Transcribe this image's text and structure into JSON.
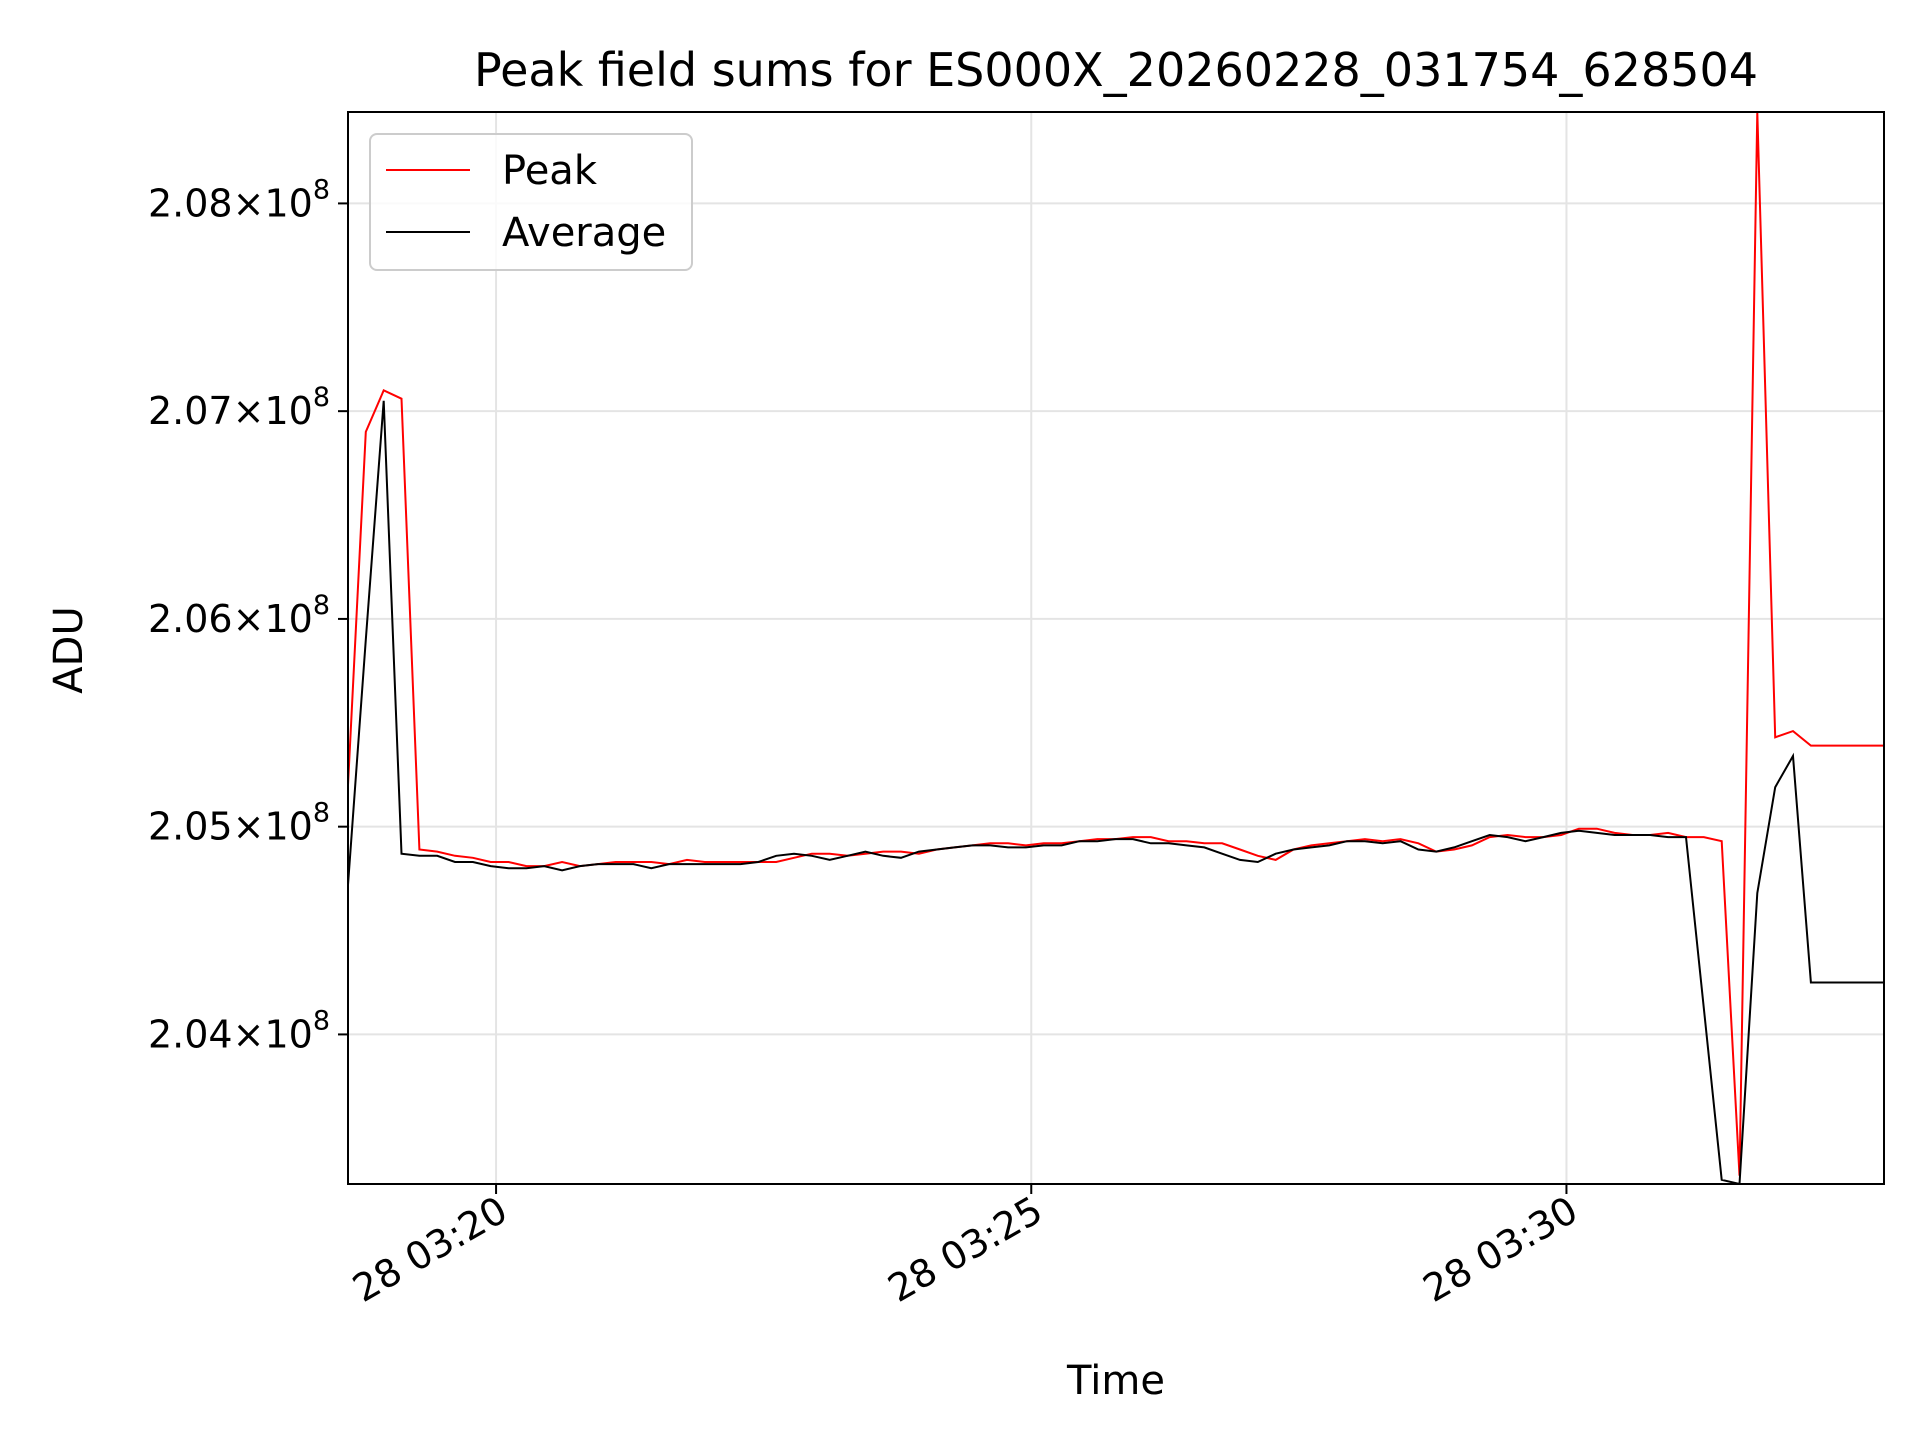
{
  "chart_data": {
    "type": "line",
    "title": "Peak field sums for ES000X_20260228_031754_628504",
    "xlabel": "Time",
    "ylabel": "ADU",
    "x_start": "2026-02-28 03:18:37",
    "x_end": "2026-02-28 03:32:58",
    "xlim": [
      "2026-02-28 03:18:37",
      "2026-02-28 03:32:58"
    ],
    "ylim": [
      203280000,
      208440000
    ],
    "x_ticks": [
      {
        "value": "2026-02-28 03:20:00",
        "label": "28 03:20"
      },
      {
        "value": "2026-02-28 03:25:00",
        "label": "28 03:25"
      },
      {
        "value": "2026-02-28 03:30:00",
        "label": "28 03:30"
      }
    ],
    "y_ticks": [
      {
        "value": 204000000,
        "mantissa": "2.04",
        "exponent": "8"
      },
      {
        "value": 205000000,
        "mantissa": "2.05",
        "exponent": "8"
      },
      {
        "value": 206000000,
        "mantissa": "2.06",
        "exponent": "8"
      },
      {
        "value": 207000000,
        "mantissa": "2.07",
        "exponent": "8"
      },
      {
        "value": 208000000,
        "mantissa": "2.08",
        "exponent": "8"
      }
    ],
    "tick_times_sep": "×10",
    "grid": true,
    "legend_position": "upper-left",
    "series": [
      {
        "name": "Peak",
        "color": "#ff0000",
        "points": [
          [
            "2026-02-28 03:18:37",
            205200000
          ],
          [
            "2026-02-28 03:18:47",
            206900000
          ],
          [
            "2026-02-28 03:18:57",
            207100000
          ],
          [
            "2026-02-28 03:19:07",
            207060000
          ],
          [
            "2026-02-28 03:19:17",
            204890000
          ],
          [
            "2026-02-28 03:19:27",
            204880000
          ],
          [
            "2026-02-28 03:19:37",
            204860000
          ],
          [
            "2026-02-28 03:19:47",
            204850000
          ],
          [
            "2026-02-28 03:19:57",
            204830000
          ],
          [
            "2026-02-28 03:20:07",
            204830000
          ],
          [
            "2026-02-28 03:20:17",
            204810000
          ],
          [
            "2026-02-28 03:20:27",
            204810000
          ],
          [
            "2026-02-28 03:20:37",
            204830000
          ],
          [
            "2026-02-28 03:20:47",
            204810000
          ],
          [
            "2026-02-28 03:20:57",
            204820000
          ],
          [
            "2026-02-28 03:21:07",
            204830000
          ],
          [
            "2026-02-28 03:21:17",
            204830000
          ],
          [
            "2026-02-28 03:21:27",
            204830000
          ],
          [
            "2026-02-28 03:21:37",
            204820000
          ],
          [
            "2026-02-28 03:21:47",
            204840000
          ],
          [
            "2026-02-28 03:21:57",
            204830000
          ],
          [
            "2026-02-28 03:22:07",
            204830000
          ],
          [
            "2026-02-28 03:22:17",
            204830000
          ],
          [
            "2026-02-28 03:22:27",
            204830000
          ],
          [
            "2026-02-28 03:22:37",
            204830000
          ],
          [
            "2026-02-28 03:22:47",
            204850000
          ],
          [
            "2026-02-28 03:22:57",
            204870000
          ],
          [
            "2026-02-28 03:23:07",
            204870000
          ],
          [
            "2026-02-28 03:23:17",
            204860000
          ],
          [
            "2026-02-28 03:23:27",
            204870000
          ],
          [
            "2026-02-28 03:23:37",
            204880000
          ],
          [
            "2026-02-28 03:23:47",
            204880000
          ],
          [
            "2026-02-28 03:23:57",
            204870000
          ],
          [
            "2026-02-28 03:24:07",
            204890000
          ],
          [
            "2026-02-28 03:24:17",
            204900000
          ],
          [
            "2026-02-28 03:24:27",
            204910000
          ],
          [
            "2026-02-28 03:24:37",
            204920000
          ],
          [
            "2026-02-28 03:24:47",
            204920000
          ],
          [
            "2026-02-28 03:24:57",
            204910000
          ],
          [
            "2026-02-28 03:25:07",
            204920000
          ],
          [
            "2026-02-28 03:25:17",
            204920000
          ],
          [
            "2026-02-28 03:25:27",
            204930000
          ],
          [
            "2026-02-28 03:25:37",
            204940000
          ],
          [
            "2026-02-28 03:25:47",
            204940000
          ],
          [
            "2026-02-28 03:25:57",
            204950000
          ],
          [
            "2026-02-28 03:26:07",
            204950000
          ],
          [
            "2026-02-28 03:26:17",
            204930000
          ],
          [
            "2026-02-28 03:26:27",
            204930000
          ],
          [
            "2026-02-28 03:26:37",
            204920000
          ],
          [
            "2026-02-28 03:26:47",
            204920000
          ],
          [
            "2026-02-28 03:26:57",
            204890000
          ],
          [
            "2026-02-28 03:27:07",
            204860000
          ],
          [
            "2026-02-28 03:27:17",
            204840000
          ],
          [
            "2026-02-28 03:27:27",
            204890000
          ],
          [
            "2026-02-28 03:27:37",
            204910000
          ],
          [
            "2026-02-28 03:27:47",
            204920000
          ],
          [
            "2026-02-28 03:27:57",
            204930000
          ],
          [
            "2026-02-28 03:28:07",
            204940000
          ],
          [
            "2026-02-28 03:28:17",
            204930000
          ],
          [
            "2026-02-28 03:28:27",
            204940000
          ],
          [
            "2026-02-28 03:28:37",
            204920000
          ],
          [
            "2026-02-28 03:28:47",
            204880000
          ],
          [
            "2026-02-28 03:28:57",
            204890000
          ],
          [
            "2026-02-28 03:29:07",
            204910000
          ],
          [
            "2026-02-28 03:29:17",
            204950000
          ],
          [
            "2026-02-28 03:29:27",
            204960000
          ],
          [
            "2026-02-28 03:29:37",
            204950000
          ],
          [
            "2026-02-28 03:29:47",
            204950000
          ],
          [
            "2026-02-28 03:29:57",
            204960000
          ],
          [
            "2026-02-28 03:30:07",
            204990000
          ],
          [
            "2026-02-28 03:30:17",
            204990000
          ],
          [
            "2026-02-28 03:30:27",
            204970000
          ],
          [
            "2026-02-28 03:30:37",
            204960000
          ],
          [
            "2026-02-28 03:30:47",
            204960000
          ],
          [
            "2026-02-28 03:30:57",
            204970000
          ],
          [
            "2026-02-28 03:31:07",
            204950000
          ],
          [
            "2026-02-28 03:31:17",
            204950000
          ],
          [
            "2026-02-28 03:31:27",
            204930000
          ],
          [
            "2026-02-28 03:31:37",
            203320000
          ],
          [
            "2026-02-28 03:31:47",
            208440000
          ],
          [
            "2026-02-28 03:31:57",
            205430000
          ],
          [
            "2026-02-28 03:32:07",
            205460000
          ],
          [
            "2026-02-28 03:32:17",
            205390000
          ],
          [
            "2026-02-28 03:32:27",
            205390000
          ],
          [
            "2026-02-28 03:32:58",
            205390000
          ]
        ]
      },
      {
        "name": "Average",
        "color": "#000000",
        "points": [
          [
            "2026-02-28 03:18:37",
            204720000
          ],
          [
            "2026-02-28 03:18:47",
            205900000
          ],
          [
            "2026-02-28 03:18:57",
            207050000
          ],
          [
            "2026-02-28 03:19:07",
            204870000
          ],
          [
            "2026-02-28 03:19:17",
            204860000
          ],
          [
            "2026-02-28 03:19:27",
            204860000
          ],
          [
            "2026-02-28 03:19:37",
            204830000
          ],
          [
            "2026-02-28 03:19:47",
            204830000
          ],
          [
            "2026-02-28 03:19:57",
            204810000
          ],
          [
            "2026-02-28 03:20:07",
            204800000
          ],
          [
            "2026-02-28 03:20:17",
            204800000
          ],
          [
            "2026-02-28 03:20:27",
            204810000
          ],
          [
            "2026-02-28 03:20:37",
            204790000
          ],
          [
            "2026-02-28 03:20:47",
            204810000
          ],
          [
            "2026-02-28 03:20:57",
            204820000
          ],
          [
            "2026-02-28 03:21:07",
            204820000
          ],
          [
            "2026-02-28 03:21:17",
            204820000
          ],
          [
            "2026-02-28 03:21:27",
            204800000
          ],
          [
            "2026-02-28 03:21:37",
            204820000
          ],
          [
            "2026-02-28 03:21:47",
            204820000
          ],
          [
            "2026-02-28 03:21:57",
            204820000
          ],
          [
            "2026-02-28 03:22:07",
            204820000
          ],
          [
            "2026-02-28 03:22:17",
            204820000
          ],
          [
            "2026-02-28 03:22:27",
            204830000
          ],
          [
            "2026-02-28 03:22:37",
            204860000
          ],
          [
            "2026-02-28 03:22:47",
            204870000
          ],
          [
            "2026-02-28 03:22:57",
            204860000
          ],
          [
            "2026-02-28 03:23:07",
            204840000
          ],
          [
            "2026-02-28 03:23:17",
            204860000
          ],
          [
            "2026-02-28 03:23:27",
            204880000
          ],
          [
            "2026-02-28 03:23:37",
            204860000
          ],
          [
            "2026-02-28 03:23:47",
            204850000
          ],
          [
            "2026-02-28 03:23:57",
            204880000
          ],
          [
            "2026-02-28 03:24:07",
            204890000
          ],
          [
            "2026-02-28 03:24:17",
            204900000
          ],
          [
            "2026-02-28 03:24:27",
            204910000
          ],
          [
            "2026-02-28 03:24:37",
            204910000
          ],
          [
            "2026-02-28 03:24:47",
            204900000
          ],
          [
            "2026-02-28 03:24:57",
            204900000
          ],
          [
            "2026-02-28 03:25:07",
            204910000
          ],
          [
            "2026-02-28 03:25:17",
            204910000
          ],
          [
            "2026-02-28 03:25:27",
            204930000
          ],
          [
            "2026-02-28 03:25:37",
            204930000
          ],
          [
            "2026-02-28 03:25:47",
            204940000
          ],
          [
            "2026-02-28 03:25:57",
            204940000
          ],
          [
            "2026-02-28 03:26:07",
            204920000
          ],
          [
            "2026-02-28 03:26:17",
            204920000
          ],
          [
            "2026-02-28 03:26:27",
            204910000
          ],
          [
            "2026-02-28 03:26:37",
            204900000
          ],
          [
            "2026-02-28 03:26:47",
            204870000
          ],
          [
            "2026-02-28 03:26:57",
            204840000
          ],
          [
            "2026-02-28 03:27:07",
            204830000
          ],
          [
            "2026-02-28 03:27:17",
            204870000
          ],
          [
            "2026-02-28 03:27:27",
            204890000
          ],
          [
            "2026-02-28 03:27:37",
            204900000
          ],
          [
            "2026-02-28 03:27:47",
            204910000
          ],
          [
            "2026-02-28 03:27:57",
            204930000
          ],
          [
            "2026-02-28 03:28:07",
            204930000
          ],
          [
            "2026-02-28 03:28:17",
            204920000
          ],
          [
            "2026-02-28 03:28:27",
            204930000
          ],
          [
            "2026-02-28 03:28:37",
            204890000
          ],
          [
            "2026-02-28 03:28:47",
            204880000
          ],
          [
            "2026-02-28 03:28:57",
            204900000
          ],
          [
            "2026-02-28 03:29:07",
            204930000
          ],
          [
            "2026-02-28 03:29:17",
            204960000
          ],
          [
            "2026-02-28 03:29:27",
            204950000
          ],
          [
            "2026-02-28 03:29:37",
            204930000
          ],
          [
            "2026-02-28 03:29:47",
            204950000
          ],
          [
            "2026-02-28 03:29:57",
            204970000
          ],
          [
            "2026-02-28 03:30:07",
            204980000
          ],
          [
            "2026-02-28 03:30:17",
            204970000
          ],
          [
            "2026-02-28 03:30:27",
            204960000
          ],
          [
            "2026-02-28 03:30:37",
            204960000
          ],
          [
            "2026-02-28 03:30:47",
            204960000
          ],
          [
            "2026-02-28 03:30:57",
            204950000
          ],
          [
            "2026-02-28 03:31:07",
            204950000
          ],
          [
            "2026-02-28 03:31:27",
            203300000
          ],
          [
            "2026-02-28 03:31:37",
            203280000
          ],
          [
            "2026-02-28 03:31:47",
            204680000
          ],
          [
            "2026-02-28 03:31:57",
            205190000
          ],
          [
            "2026-02-28 03:32:07",
            205340000
          ],
          [
            "2026-02-28 03:32:17",
            204250000
          ],
          [
            "2026-02-28 03:32:27",
            204250000
          ],
          [
            "2026-02-28 03:32:58",
            204250000
          ]
        ]
      }
    ]
  }
}
